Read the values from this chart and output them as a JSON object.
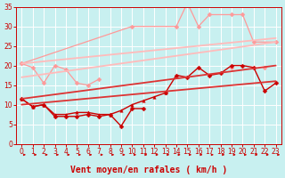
{
  "xlabel": "Vent moyen/en rafales ( km/h )",
  "xlim": [
    -0.5,
    23.5
  ],
  "ylim": [
    0,
    35
  ],
  "yticks": [
    0,
    5,
    10,
    15,
    20,
    25,
    30,
    35
  ],
  "xticks": [
    0,
    1,
    2,
    3,
    4,
    5,
    6,
    7,
    8,
    9,
    10,
    11,
    12,
    13,
    14,
    15,
    16,
    17,
    18,
    19,
    20,
    21,
    22,
    23
  ],
  "bg_color": "#c8f0f0",
  "grid_color": "#aadddd",
  "series": [
    {
      "x": [
        0,
        1,
        2,
        3,
        4,
        5,
        6,
        7,
        8,
        9,
        10,
        11,
        12,
        13,
        14,
        15,
        16,
        17,
        18,
        19,
        20,
        21,
        22,
        23
      ],
      "y": [
        20.5,
        19.5,
        15.5,
        20,
        19,
        15.5,
        15,
        16.5,
        null,
        null,
        null,
        null,
        null,
        null,
        null,
        null,
        null,
        null,
        null,
        19.5,
        null,
        null,
        19.5,
        null
      ],
      "color": "#ff9999",
      "lw": 0.9,
      "marker": "D",
      "ms": 2.5,
      "linestyle": "-"
    },
    {
      "x": [
        0,
        10,
        14,
        15,
        16,
        17,
        19,
        20,
        21,
        23
      ],
      "y": [
        20.5,
        30,
        30,
        36,
        30,
        33,
        33,
        33,
        26,
        26
      ],
      "color": "#ff9999",
      "lw": 0.9,
      "marker": "D",
      "ms": 2.5,
      "linestyle": "-"
    },
    {
      "x": [
        0,
        23
      ],
      "y": [
        20.5,
        27
      ],
      "color": "#ffbbbb",
      "lw": 1.3,
      "marker": null,
      "ms": 0,
      "linestyle": "-"
    },
    {
      "x": [
        0,
        23
      ],
      "y": [
        17,
        26
      ],
      "color": "#ffbbbb",
      "lw": 1.3,
      "marker": null,
      "ms": 0,
      "linestyle": "-"
    },
    {
      "x": [
        0,
        1,
        2,
        3,
        4,
        5,
        6,
        7,
        8,
        9,
        10,
        11,
        12,
        13,
        14,
        15,
        16,
        17,
        18,
        19,
        20,
        21,
        22,
        23
      ],
      "y": [
        11.5,
        9.5,
        10,
        7,
        7,
        7,
        7.5,
        7,
        7.5,
        4.5,
        9,
        9,
        null,
        13,
        17.5,
        17,
        19.5,
        17.5,
        18,
        20,
        20,
        19.5,
        13.5,
        15.5
      ],
      "color": "#cc0000",
      "lw": 1.0,
      "marker": "D",
      "ms": 2.5,
      "linestyle": "-"
    },
    {
      "x": [
        0,
        1,
        2,
        3,
        4,
        5,
        6,
        7,
        8,
        9,
        10,
        11,
        12,
        13
      ],
      "y": [
        11.5,
        9.5,
        10,
        7.5,
        7.5,
        8,
        8,
        7.5,
        7.5,
        8.5,
        10,
        11,
        12,
        13
      ],
      "color": "#cc0000",
      "lw": 1.0,
      "marker": "^",
      "ms": 2.5,
      "linestyle": "-"
    },
    {
      "x": [
        0,
        23
      ],
      "y": [
        11.5,
        20
      ],
      "color": "#dd3333",
      "lw": 1.3,
      "marker": null,
      "ms": 0,
      "linestyle": "-"
    },
    {
      "x": [
        0,
        23
      ],
      "y": [
        10,
        16
      ],
      "color": "#dd3333",
      "lw": 1.3,
      "marker": null,
      "ms": 0,
      "linestyle": "-"
    }
  ],
  "arrow_color": "#cc0000",
  "xlabel_color": "#cc0000",
  "tick_color": "#cc0000",
  "tick_fontsize": 5.5,
  "xlabel_fontsize": 7
}
